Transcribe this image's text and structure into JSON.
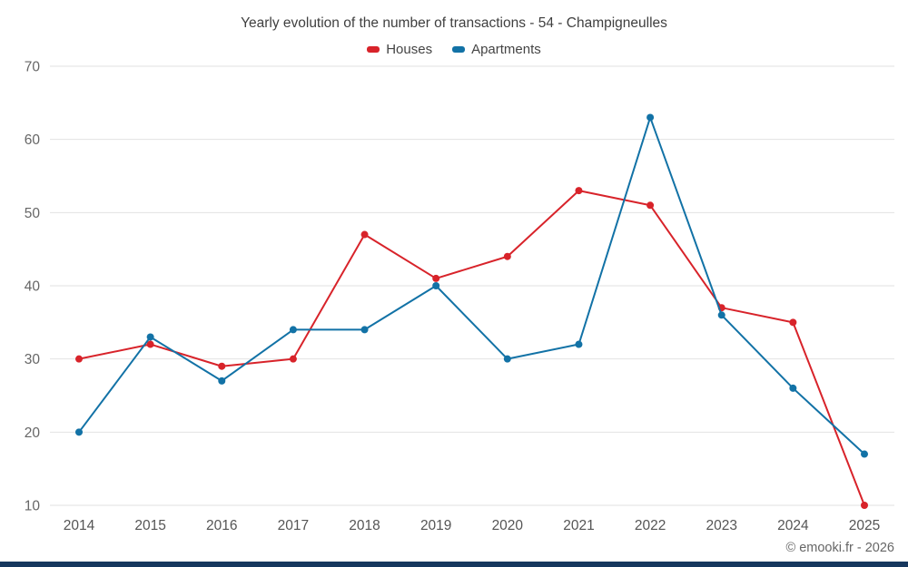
{
  "chart_data": {
    "type": "line",
    "title": "Yearly evolution of the number of transactions - 54 - Champigneulles",
    "categories": [
      "2014",
      "2015",
      "2016",
      "2017",
      "2018",
      "2019",
      "2020",
      "2021",
      "2022",
      "2023",
      "2024",
      "2025"
    ],
    "series": [
      {
        "name": "Houses",
        "color": "#d8232a",
        "values": [
          30,
          32,
          29,
          30,
          47,
          41,
          44,
          53,
          51,
          37,
          35,
          10
        ]
      },
      {
        "name": "Apartments",
        "color": "#1272a6",
        "values": [
          20,
          33,
          27,
          34,
          34,
          40,
          30,
          32,
          63,
          36,
          26,
          17
        ]
      }
    ],
    "xlabel": "",
    "ylabel": "",
    "ylim": [
      10,
      70
    ],
    "ytick_step": 10,
    "yticks": [
      10,
      20,
      30,
      40,
      50,
      60,
      70
    ],
    "grid": true,
    "legend_position": "top"
  },
  "footer": {
    "credit": "© emooki.fr - 2026"
  },
  "colors": {
    "gridline": "#e2e2e2",
    "axis_label": "#555555",
    "ytick_label": "#666666",
    "title_text": "#3f3f3f",
    "bottom_bar": "#16375e"
  }
}
